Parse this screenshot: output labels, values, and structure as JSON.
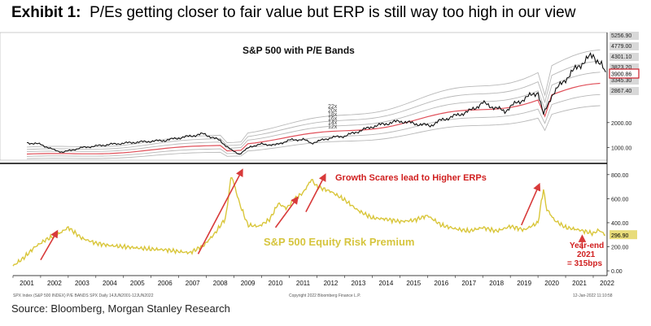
{
  "header": {
    "exhibit_label": "Exhibit 1:",
    "title": "P/Es getting closer to fair value but ERP is still way too high in our view"
  },
  "source": "Source: Bloomberg, Morgan Stanley Research",
  "footnote_left": "SPX Index (S&P 500 INDEX) P/E BANDS SPX Daily 14JUN2001-12JUN2022",
  "footnote_mid": "Copyright 2022 Bloomberg Finance L.P.",
  "footnote_right": "12-Jan-2022 11:10:58",
  "colors": {
    "price": "#111111",
    "pe_band": "#b8b8b8",
    "pe_16x": "#e0505a",
    "erp": "#d9c63a",
    "arrow": "#d83a3a",
    "annotation": "#d01f1f",
    "erp_label": "#d6c53e",
    "price_box": "#cc1f2a"
  },
  "chart_data": [
    {
      "type": "line",
      "title": "S&P 500 with P/E Bands",
      "ylim": [
        500,
        5600
      ],
      "xlim": [
        2001,
        2022.5
      ],
      "y_ticks": [
        "1000.00",
        "2000.00"
      ],
      "band_labels": [
        "22x",
        "20x",
        "18x",
        "16x",
        "14x",
        "12x"
      ],
      "right_axis_values": [
        "5256.90",
        "4779.00",
        "4301.10",
        "3823.20",
        "3345.30",
        "2867.40"
      ],
      "last_price": "3900.86",
      "series": [
        {
          "x": [
            2001.5,
            2002.0,
            2002.5,
            2002.8,
            2003.5,
            2004.5,
            2005.5,
            2006.5,
            2007.5,
            2007.9,
            2008.5,
            2008.9,
            2009.2,
            2009.6,
            2010.0,
            2010.5,
            2011.0,
            2011.5,
            2011.8,
            2012.5,
            2013.0,
            2013.5,
            2014.0,
            2014.5,
            2015.0,
            2015.6,
            2016.1,
            2016.5,
            2017.0,
            2017.5,
            2018.0,
            2018.8,
            2019.0,
            2019.5,
            2020.0,
            2020.2,
            2020.5,
            2021.0,
            2021.5,
            2022.0,
            2022.3,
            2022.45
          ],
          "values": [
            1200,
            1130,
            900,
            820,
            1000,
            1130,
            1220,
            1290,
            1480,
            1550,
            1280,
            900,
            740,
            1050,
            1140,
            1100,
            1300,
            1330,
            1180,
            1400,
            1460,
            1650,
            1840,
            1960,
            2060,
            1950,
            1880,
            2100,
            2270,
            2450,
            2780,
            2450,
            2640,
            2950,
            3230,
            2300,
            3100,
            3750,
            4300,
            4700,
            4300,
            3900
          ]
        }
      ]
    },
    {
      "type": "line",
      "title": "S&P 500 Equity Risk Premium",
      "ylim": [
        -40,
        880
      ],
      "xlim": [
        2001,
        2022.5
      ],
      "y_ticks": [
        "0.00",
        "200.00",
        "400.00",
        "600.00",
        "800.00"
      ],
      "last_value": "296.90",
      "annotation": "Growth Scares lead to Higher ERPs",
      "yearend_note": [
        "Year-end",
        "2021",
        "= 315bps"
      ],
      "x_ticks": [
        "2001",
        "2002",
        "2003",
        "2004",
        "2005",
        "2006",
        "2007",
        "2008",
        "2009",
        "2010",
        "2011",
        "2012",
        "2013",
        "2014",
        "2015",
        "2016",
        "2017",
        "2018",
        "2019",
        "2020",
        "2021",
        "2022"
      ],
      "series": [
        {
          "x": [
            2001.0,
            2001.4,
            2001.8,
            2002.2,
            2002.6,
            2003.0,
            2003.5,
            2004.0,
            2004.5,
            2005.0,
            2005.5,
            2006.0,
            2006.5,
            2007.0,
            2007.4,
            2007.9,
            2008.3,
            2008.7,
            2008.9,
            2009.2,
            2009.5,
            2009.9,
            2010.3,
            2010.6,
            2010.9,
            2011.2,
            2011.5,
            2011.8,
            2012.0,
            2012.5,
            2013.0,
            2013.5,
            2014.0,
            2014.5,
            2015.0,
            2015.5,
            2016.0,
            2016.5,
            2017.0,
            2017.5,
            2018.0,
            2018.5,
            2019.0,
            2019.5,
            2020.0,
            2020.2,
            2020.3,
            2020.6,
            2021.0,
            2021.5,
            2022.0,
            2022.2,
            2022.45
          ],
          "values": [
            40,
            110,
            200,
            260,
            300,
            360,
            270,
            230,
            210,
            200,
            190,
            180,
            175,
            160,
            150,
            210,
            310,
            440,
            800,
            560,
            380,
            370,
            430,
            560,
            520,
            600,
            650,
            760,
            700,
            660,
            590,
            500,
            440,
            430,
            410,
            420,
            460,
            380,
            350,
            330,
            360,
            330,
            370,
            340,
            400,
            680,
            520,
            420,
            360,
            340,
            310,
            340,
            297
          ]
        }
      ]
    }
  ]
}
